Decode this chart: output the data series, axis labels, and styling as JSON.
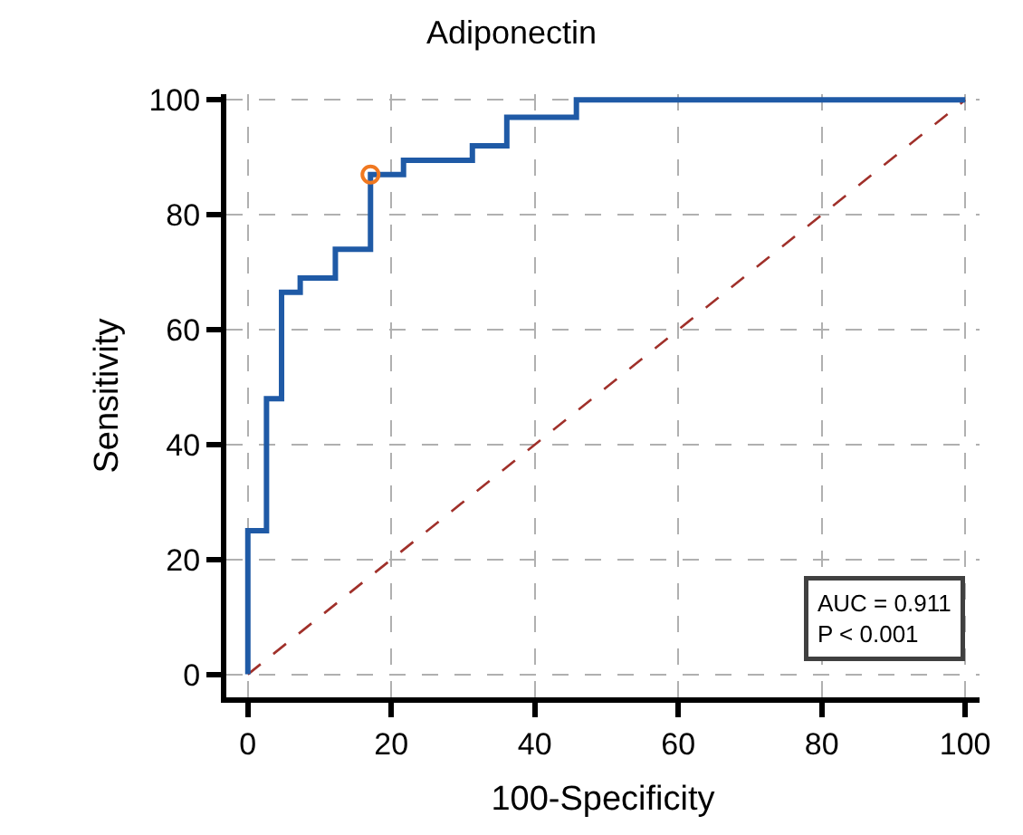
{
  "chart_data": {
    "type": "step",
    "title": "Adiponectin",
    "xlabel": "100-Specificity",
    "ylabel": "Sensitivity",
    "xlim": [
      -3,
      102
    ],
    "ylim": [
      -4,
      101
    ],
    "xticks": [
      0,
      20,
      40,
      60,
      80,
      100
    ],
    "yticks": [
      0,
      20,
      40,
      60,
      80,
      100
    ],
    "grid": true,
    "series": [
      {
        "type": "line",
        "color": "#a0302a",
        "line_style": "dashed",
        "marker": "none",
        "x": [
          0,
          100
        ],
        "values": [
          0,
          100
        ]
      },
      {
        "color": "#1f5aa6",
        "line_style": "solid",
        "marker": "none",
        "x": [
          0,
          0,
          2.6,
          4.7,
          7.3,
          12.2,
          17.1,
          21.7,
          31.3,
          36.1,
          45.8,
          100
        ],
        "values": [
          0,
          25,
          48,
          66.5,
          69,
          74,
          87,
          89.5,
          92,
          97,
          100,
          100
        ]
      },
      {
        "type": "scatter",
        "color": "#f07820",
        "marker": "circle",
        "x": [
          17.1
        ],
        "values": [
          87
        ]
      }
    ],
    "annotations": [
      "AUC = 0.911\nP < 0.001"
    ]
  }
}
